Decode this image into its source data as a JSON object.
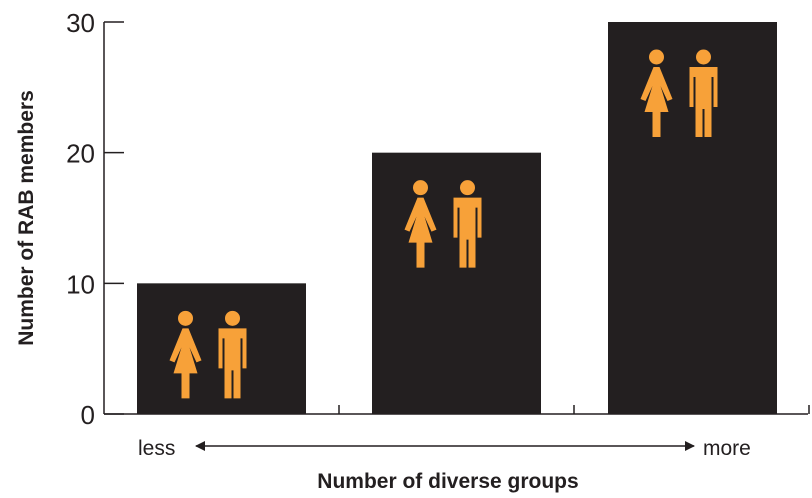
{
  "chart_data": {
    "type": "bar",
    "categories": [
      "less",
      "",
      "more"
    ],
    "values": [
      10,
      20,
      30
    ],
    "ylabel": "Number of RAB members",
    "xlabel": "Number of diverse groups",
    "ylim": [
      0,
      30
    ],
    "yticks": [
      0,
      10,
      20,
      30
    ],
    "x_arrow": {
      "left_label": "less",
      "right_label": "more"
    },
    "bar_color": "#231f20",
    "icon_color": "#f7a139",
    "icons": [
      "woman-icon",
      "man-icon"
    ],
    "grid": false,
    "legend": "none"
  }
}
